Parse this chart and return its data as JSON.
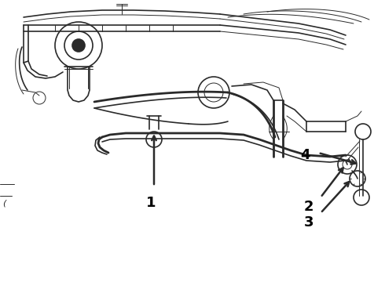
{
  "background_color": "#ffffff",
  "line_color": "#2a2a2a",
  "label_color": "#000000",
  "figsize": [
    4.9,
    3.6
  ],
  "dpi": 100,
  "label_fontsize": 13
}
